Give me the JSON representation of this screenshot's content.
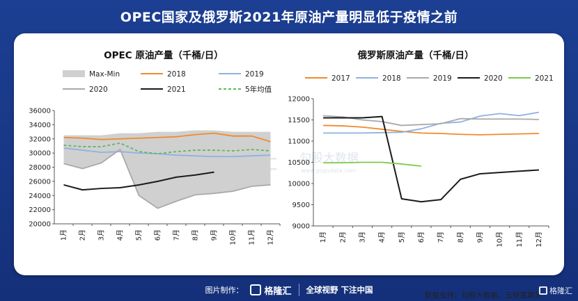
{
  "headline": "OPEC国家及俄罗斯2021年原油产量明显低于疫情之前",
  "source_note": "数据支持：勾股大数据、云财富期货",
  "watermarks": [
    "格隆汇",
    "勾股大数据",
    "www.gogudata.com"
  ],
  "footer": {
    "made_by": "图片制作：",
    "brand": "格隆汇",
    "slogan": "全球视野 下注中国"
  },
  "corner_brand": "格隆汇",
  "chart_data": [
    {
      "type": "line",
      "title": "OPEC 原油产量（千桶/日）",
      "categories": [
        "1月",
        "2月",
        "3月",
        "4月",
        "5月",
        "6月",
        "7月",
        "8月",
        "9月",
        "10月",
        "11月",
        "12月"
      ],
      "ylim": [
        20000,
        36000
      ],
      "yticks": [
        20000,
        22000,
        24000,
        26000,
        28000,
        30000,
        32000,
        34000,
        36000
      ],
      "band": {
        "name": "Max-Min",
        "color": "#d0d0d0",
        "upper": [
          32500,
          32500,
          32500,
          32800,
          32800,
          33000,
          33000,
          33200,
          33200,
          33000,
          33000,
          33000
        ],
        "lower": [
          28500,
          27800,
          28600,
          30500,
          24000,
          22200,
          23200,
          24100,
          24300,
          24600,
          25300,
          25500
        ]
      },
      "series": [
        {
          "name": "2018",
          "color": "#f08a2c",
          "dashed": false,
          "values": [
            32200,
            32100,
            31900,
            32000,
            32100,
            32200,
            32300,
            32600,
            32800,
            32400,
            32400,
            31600
          ]
        },
        {
          "name": "2019",
          "color": "#8db1e2",
          "dashed": false,
          "values": [
            30700,
            30400,
            30100,
            30200,
            30000,
            29900,
            29700,
            29600,
            29500,
            29500,
            29600,
            29700
          ]
        },
        {
          "name": "2020",
          "color": "#a9a9a9",
          "dashed": false,
          "values": [
            28500,
            27800,
            28600,
            30500,
            24000,
            22200,
            23200,
            24100,
            24300,
            24600,
            25300,
            25500
          ]
        },
        {
          "name": "2021",
          "color": "#1a1a1a",
          "dashed": false,
          "values": [
            25500,
            24800,
            25000,
            25100,
            25500,
            26000,
            26600,
            26900,
            27300,
            null,
            null,
            null
          ]
        },
        {
          "name": "5年均值",
          "color": "#5cb85c",
          "dashed": true,
          "values": [
            31100,
            30900,
            30900,
            31400,
            30200,
            29900,
            30200,
            30400,
            30400,
            30300,
            30500,
            30300
          ]
        }
      ]
    },
    {
      "type": "line",
      "title": "俄罗斯原油产量（千桶/日）",
      "categories": [
        "1月",
        "2月",
        "3月",
        "4月",
        "5月",
        "6月",
        "7月",
        "8月",
        "9月",
        "10月",
        "11月",
        "12月"
      ],
      "ylim": [
        9000,
        12000
      ],
      "yticks": [
        9000,
        9500,
        10000,
        10500,
        11000,
        11500,
        12000
      ],
      "series": [
        {
          "name": "2017",
          "color": "#f08a2c",
          "values": [
            11370,
            11360,
            11330,
            11280,
            11230,
            11190,
            11180,
            11160,
            11150,
            11160,
            11170,
            11180
          ]
        },
        {
          "name": "2018",
          "color": "#8db1e2",
          "values": [
            11190,
            11190,
            11190,
            11200,
            11210,
            11290,
            11420,
            11450,
            11590,
            11650,
            11600,
            11680
          ]
        },
        {
          "name": "2019",
          "color": "#a9a9a9",
          "values": [
            11600,
            11570,
            11500,
            11460,
            11370,
            11390,
            11410,
            11530,
            11520,
            11520,
            11520,
            11510
          ]
        },
        {
          "name": "2020",
          "color": "#1a1a1a",
          "values": [
            11550,
            11550,
            11550,
            11580,
            9640,
            9570,
            9620,
            10100,
            10230,
            10260,
            10290,
            10320
          ]
        },
        {
          "name": "2021",
          "color": "#7cc94a",
          "values": [
            10490,
            10490,
            10500,
            10500,
            10460,
            10410,
            null,
            null,
            null,
            null,
            null,
            null
          ]
        }
      ]
    }
  ]
}
